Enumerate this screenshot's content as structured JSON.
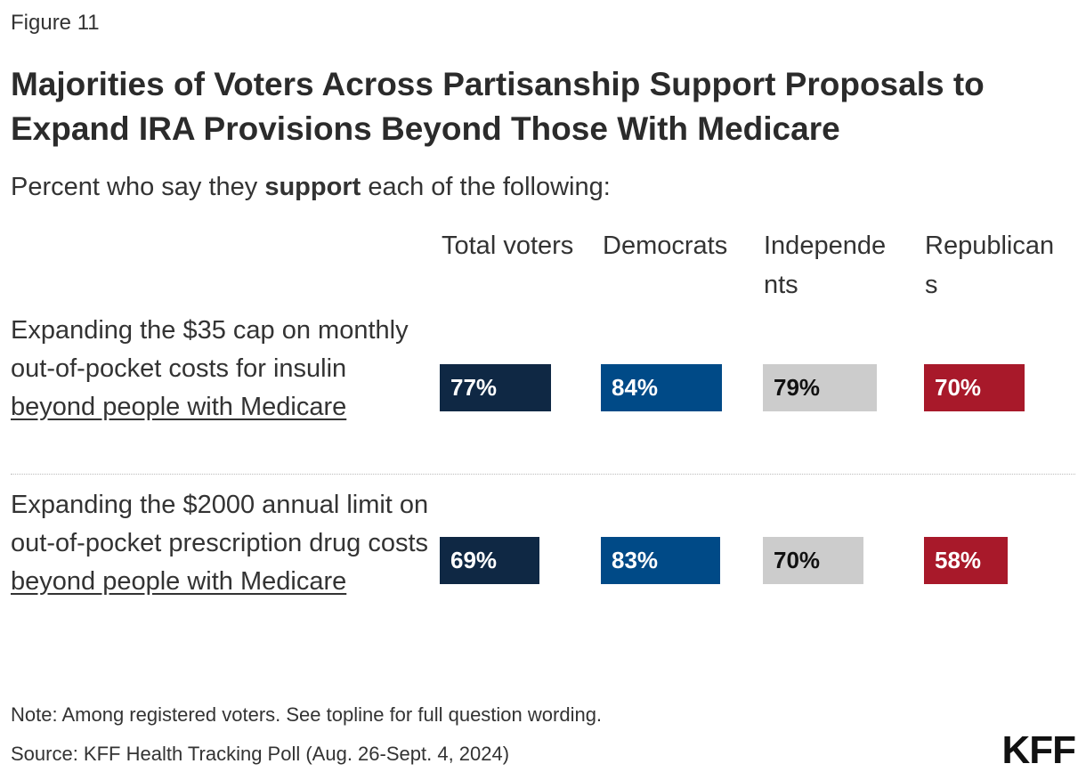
{
  "figure_label": "Figure 11",
  "title": "Majorities of Voters Across Partisanship Support Proposals to Expand IRA Provisions Beyond Those With Medicare",
  "subtitle_pre": "Percent who say they ",
  "subtitle_bold": "support",
  "subtitle_post": " each of the following:",
  "note": "Note: Among registered voters. See topline for full question wording.",
  "source": "Source: KFF Health Tracking Poll (Aug. 26-Sept. 4, 2024)",
  "logo": "KFF",
  "chart_data": {
    "type": "bar",
    "columns": [
      {
        "name": "Total voters",
        "color": "#0f2844",
        "text_color": "#ffffff"
      },
      {
        "name": "Democrats",
        "color": "#004a87",
        "text_color": "#ffffff"
      },
      {
        "name": "Independents",
        "color": "#cccccc",
        "text_color": "#111111"
      },
      {
        "name": "Republicans",
        "color": "#a8192a",
        "text_color": "#ffffff"
      }
    ],
    "rows": [
      {
        "label_pre": "Expanding the $35 cap on monthly out-of-pocket costs for insulin ",
        "label_underlined": "beyond people with Medicare",
        "values": [
          77,
          84,
          79,
          70
        ],
        "value_labels": [
          "77%",
          "84%",
          "79%",
          "70%"
        ]
      },
      {
        "label_pre": "Expanding the $2000 annual limit on out-of-pocket prescription drug costs ",
        "label_underlined": "beyond people with Medicare",
        "values": [
          69,
          83,
          70,
          58
        ],
        "value_labels": [
          "69%",
          "83%",
          "70%",
          "58%"
        ]
      }
    ],
    "unit": "%",
    "xlim": [
      0,
      100
    ]
  }
}
